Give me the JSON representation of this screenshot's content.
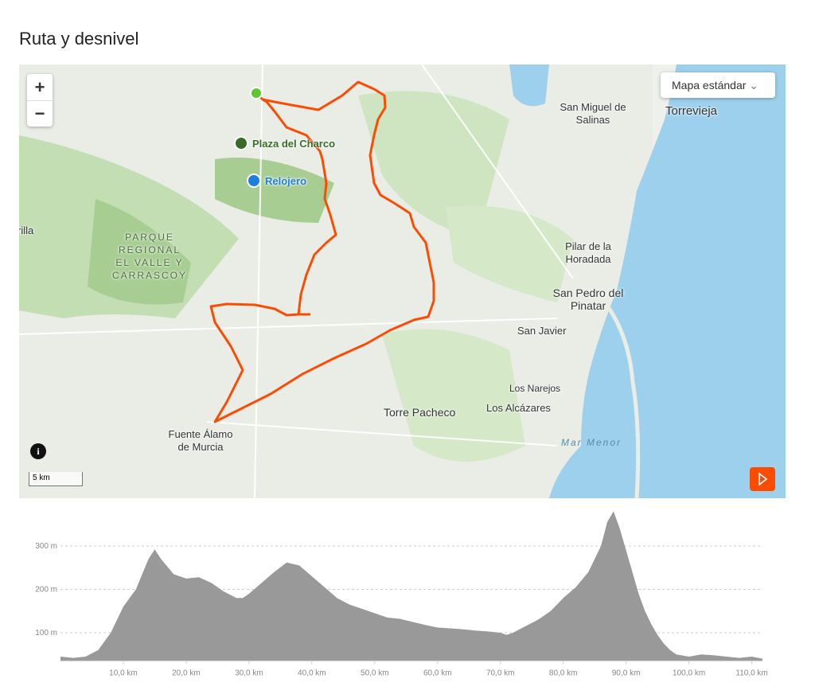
{
  "header": {
    "title": "Ruta y desnivel"
  },
  "map": {
    "style_menu": "Mapa estándar",
    "zoom_in": "+",
    "zoom_out": "−",
    "scale": "5 km",
    "pois": [
      "Plaza del Charco",
      "Relojero"
    ],
    "places": [
      {
        "lines": [
          "PARQUE",
          "REGIONAL",
          "EL VALLE Y",
          "CARRASCOY"
        ]
      },
      {
        "lines": [
          "rilla"
        ]
      },
      {
        "lines": [
          "San Miguel de",
          "Salinas"
        ]
      },
      {
        "lines": [
          "Torrevieja"
        ]
      },
      {
        "lines": [
          "Pilar de la",
          "Horadada"
        ]
      },
      {
        "lines": [
          "San Pedro del",
          "Pinatar"
        ]
      },
      {
        "lines": [
          "San Javier"
        ]
      },
      {
        "lines": [
          "Los Narejos"
        ]
      },
      {
        "lines": [
          "Los Alcázares"
        ]
      },
      {
        "lines": [
          "Torre Pacheco"
        ]
      },
      {
        "lines": [
          "Fuente Álamo",
          "de Murcia"
        ]
      },
      {
        "lines": [
          "Mar Menor"
        ]
      }
    ]
  },
  "chart_data": {
    "type": "area",
    "color": "#999999",
    "x": [
      0,
      2,
      4,
      6,
      8,
      9,
      10,
      12,
      14,
      15,
      16,
      18,
      20,
      22,
      24,
      26,
      28,
      29,
      30,
      32,
      34,
      36,
      38,
      40,
      42,
      44,
      46,
      48,
      50,
      52,
      54,
      56,
      58,
      60,
      62,
      64,
      66,
      68,
      70,
      71,
      72,
      74,
      76,
      78,
      80,
      82,
      84,
      86,
      87,
      88,
      89,
      90,
      91,
      92,
      93,
      94,
      95,
      96,
      97,
      98,
      100,
      102,
      104,
      106,
      108,
      110,
      111.7
    ],
    "values": [
      45,
      42,
      45,
      60,
      100,
      130,
      160,
      200,
      270,
      292,
      270,
      235,
      225,
      228,
      215,
      195,
      180,
      180,
      190,
      215,
      240,
      262,
      255,
      230,
      205,
      180,
      165,
      155,
      145,
      135,
      132,
      125,
      118,
      112,
      110,
      108,
      105,
      103,
      100,
      95,
      100,
      115,
      130,
      150,
      180,
      205,
      240,
      300,
      355,
      380,
      340,
      290,
      240,
      190,
      150,
      120,
      95,
      75,
      60,
      50,
      45,
      50,
      48,
      45,
      42,
      45,
      40
    ],
    "xlim": [
      0,
      111.7
    ],
    "ylim": [
      35,
      385
    ],
    "xticks": [
      {
        "value": 10,
        "label": "10,0 km"
      },
      {
        "value": 20,
        "label": "20,0 km"
      },
      {
        "value": 30,
        "label": "30,0 km"
      },
      {
        "value": 40,
        "label": "40,0 km"
      },
      {
        "value": 50,
        "label": "50,0 km"
      },
      {
        "value": 60,
        "label": "60,0 km"
      },
      {
        "value": 70,
        "label": "70,0 km"
      },
      {
        "value": 80,
        "label": "80,0 km"
      },
      {
        "value": 90,
        "label": "90,0 km"
      },
      {
        "value": 100,
        "label": "100,0 km"
      },
      {
        "value": 110,
        "label": "110,0 km"
      }
    ],
    "yticks": [
      {
        "value": 100,
        "label": "100 m"
      },
      {
        "value": 200,
        "label": "200 m"
      },
      {
        "value": 300,
        "label": "300 m"
      }
    ],
    "grid": true
  }
}
